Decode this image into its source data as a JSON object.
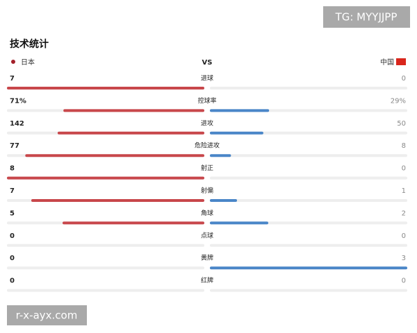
{
  "watermark_top": "TG: MYYJJPP",
  "watermark_bottom": "r-x-ayx.com",
  "title": "技术统计",
  "teams": {
    "home": "日本",
    "vs": "VS",
    "away": "中国"
  },
  "stats": [
    {
      "label": "进球",
      "home": 7,
      "away": 0
    },
    {
      "label": "控球率",
      "home": 71,
      "away": 29,
      "home_label": "71%",
      "away_label": "29%"
    },
    {
      "label": "进攻",
      "home": 142,
      "away": 50
    },
    {
      "label": "危险进攻",
      "home": 77,
      "away": 8
    },
    {
      "label": "射正",
      "home": 8,
      "away": 0
    },
    {
      "label": "射偏",
      "home": 7,
      "away": 1
    },
    {
      "label": "角球",
      "home": 5,
      "away": 2
    },
    {
      "label": "点球",
      "home": 0,
      "away": 0
    },
    {
      "label": "黄牌",
      "home": 0,
      "away": 3
    },
    {
      "label": "红牌",
      "home": 0,
      "away": 0
    }
  ]
}
